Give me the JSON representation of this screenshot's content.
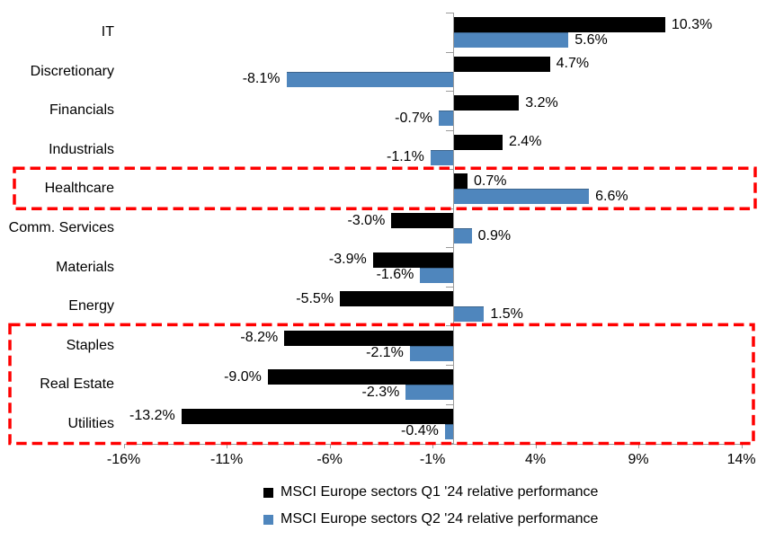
{
  "chart_data": {
    "type": "bar",
    "orientation": "horizontal",
    "title": "",
    "categories": [
      "IT",
      "Discretionary",
      "Financials",
      "Industrials",
      "Healthcare",
      "Comm. Services",
      "Materials",
      "Energy",
      "Staples",
      "Real Estate",
      "Utilities"
    ],
    "series": [
      {
        "name": "MSCI Europe sectors Q1 '24 relative performance",
        "color": "#000000",
        "values": [
          10.3,
          4.7,
          3.2,
          2.4,
          0.7,
          -3.0,
          -3.9,
          -5.5,
          -8.2,
          -9.0,
          -13.2
        ],
        "value_labels": [
          "10.3%",
          "4.7%",
          "3.2%",
          "2.4%",
          "0.7%",
          "-3.0%",
          "-3.9%",
          "-5.5%",
          "-8.2%",
          "-9.0%",
          "-13.2%"
        ]
      },
      {
        "name": "MSCI Europe sectors Q2 '24 relative performance",
        "color": "#4F86BD",
        "values": [
          5.6,
          -8.1,
          -0.7,
          -1.1,
          6.6,
          0.9,
          -1.6,
          1.5,
          -2.1,
          -2.3,
          -0.4
        ],
        "value_labels": [
          "5.6%",
          "-8.1%",
          "-0.7%",
          "-1.1%",
          "6.6%",
          "0.9%",
          "-1.6%",
          "1.5%",
          "-2.1%",
          "-2.3%",
          "-0.4%"
        ]
      }
    ],
    "x_axis": {
      "tick_labels": [
        "-16%",
        "-11%",
        "-6%",
        "-1%",
        "4%",
        "9%",
        "14%"
      ],
      "tick_values": [
        -16,
        -11,
        -6,
        -1,
        4,
        9,
        14
      ],
      "range": [
        -16,
        14
      ]
    },
    "grid": false,
    "legend_position": "bottom",
    "axis_color": "#9B9B9B",
    "annotations": {
      "highlight_color": "#FF0000",
      "highlight_boxes": [
        {
          "from_category": "Healthcare",
          "to_category": "Healthcare"
        },
        {
          "from_category": "Staples",
          "to_category": "Utilities"
        }
      ]
    }
  }
}
